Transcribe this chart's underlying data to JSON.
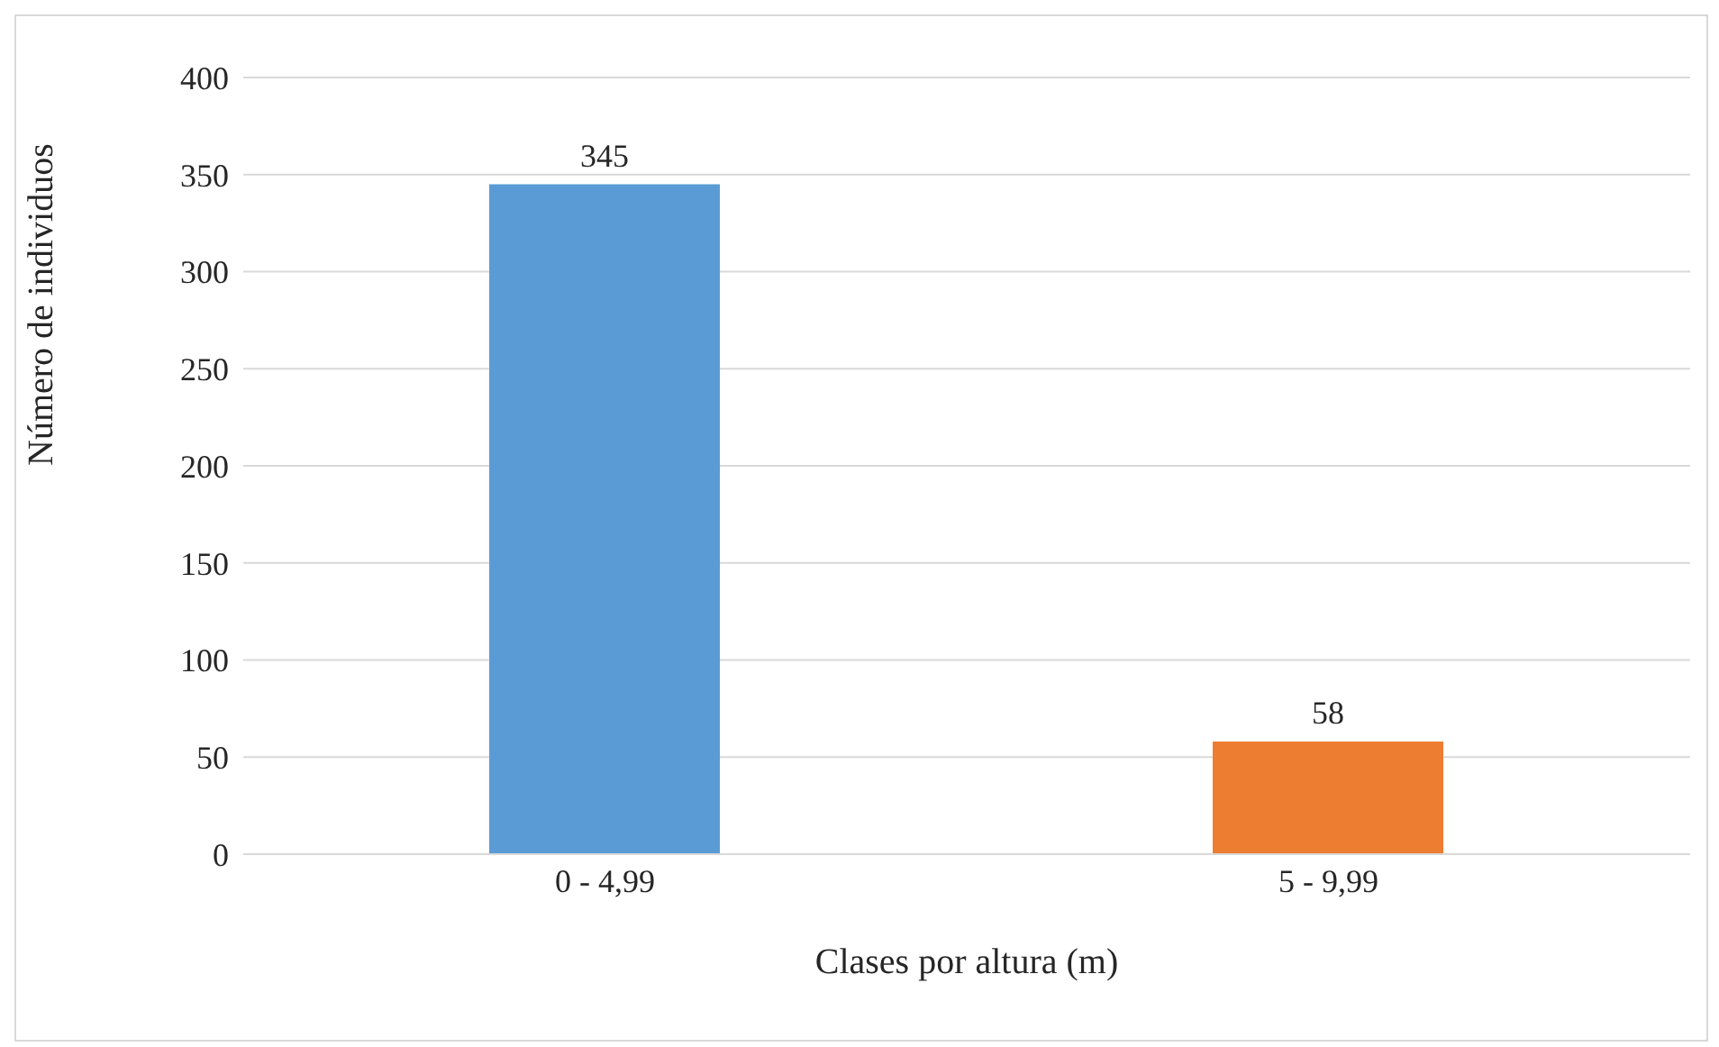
{
  "chart_data": {
    "type": "bar",
    "xlabel": "Clases por altura (m)",
    "ylabel": "Número de individuos",
    "categories": [
      "0 - 4,99",
      "5 - 9,99"
    ],
    "values": [
      345,
      58
    ],
    "colors": [
      "#5b9bd5",
      "#ed7d31"
    ],
    "ylim": [
      0,
      400
    ],
    "yticks": [
      0,
      50,
      100,
      150,
      200,
      250,
      300,
      350,
      400
    ],
    "grid": "y",
    "data_labels": true
  }
}
